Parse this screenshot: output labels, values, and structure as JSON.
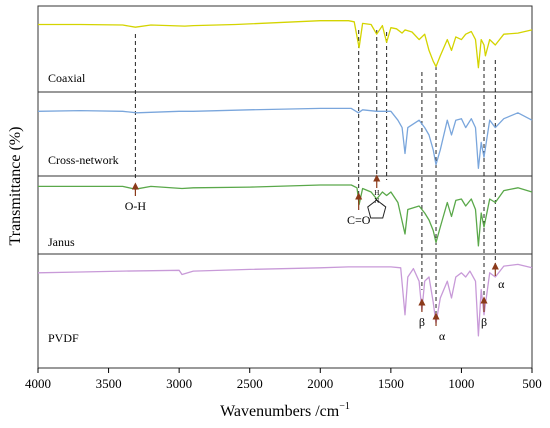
{
  "chart_data": {
    "type": "line",
    "xlabel": "Wavenumbers /cm",
    "xlabel_sup": "−1",
    "ylabel": "Transmittance (%)",
    "xlim": [
      4000,
      500
    ],
    "x_ticks": [
      4000,
      3500,
      3000,
      2500,
      2000,
      1500,
      1000,
      500
    ],
    "x_tick_labels": [
      "4000",
      "3500",
      "3000",
      "2500",
      "2000",
      "1500",
      "1000",
      "500"
    ],
    "grid": false,
    "stacked_panels": true,
    "series": [
      {
        "name": "Coaxial",
        "color": "#d4d400",
        "points": [
          [
            4000,
            0.88
          ],
          [
            3700,
            0.88
          ],
          [
            3400,
            0.87
          ],
          [
            3310,
            0.83
          ],
          [
            3200,
            0.87
          ],
          [
            2960,
            0.85
          ],
          [
            2900,
            0.86
          ],
          [
            2600,
            0.88
          ],
          [
            2000,
            0.95
          ],
          [
            1800,
            0.95
          ],
          [
            1760,
            0.93
          ],
          [
            1725,
            0.45
          ],
          [
            1700,
            0.9
          ],
          [
            1640,
            0.88
          ],
          [
            1600,
            0.7
          ],
          [
            1560,
            0.86
          ],
          [
            1530,
            0.55
          ],
          [
            1500,
            0.82
          ],
          [
            1460,
            0.8
          ],
          [
            1420,
            0.72
          ],
          [
            1400,
            0.78
          ],
          [
            1350,
            0.74
          ],
          [
            1300,
            0.6
          ],
          [
            1260,
            0.7
          ],
          [
            1230,
            0.4
          ],
          [
            1200,
            0.2
          ],
          [
            1180,
            0.1
          ],
          [
            1150,
            0.3
          ],
          [
            1100,
            0.6
          ],
          [
            1070,
            0.4
          ],
          [
            1040,
            0.65
          ],
          [
            1000,
            0.6
          ],
          [
            970,
            0.7
          ],
          [
            930,
            0.75
          ],
          [
            900,
            0.6
          ],
          [
            880,
            0.08
          ],
          [
            860,
            0.6
          ],
          [
            840,
            0.5
          ],
          [
            830,
            0.3
          ],
          [
            800,
            0.6
          ],
          [
            760,
            0.5
          ],
          [
            700,
            0.7
          ],
          [
            600,
            0.72
          ],
          [
            500,
            0.78
          ]
        ]
      },
      {
        "name": "Cross-network",
        "color": "#7aa6dc",
        "points": [
          [
            4000,
            0.82
          ],
          [
            3700,
            0.83
          ],
          [
            3400,
            0.82
          ],
          [
            3300,
            0.8
          ],
          [
            3000,
            0.82
          ],
          [
            2900,
            0.82
          ],
          [
            2500,
            0.84
          ],
          [
            2000,
            0.86
          ],
          [
            1780,
            0.86
          ],
          [
            1730,
            0.8
          ],
          [
            1700,
            0.84
          ],
          [
            1600,
            0.82
          ],
          [
            1500,
            0.82
          ],
          [
            1450,
            0.7
          ],
          [
            1420,
            0.6
          ],
          [
            1400,
            0.25
          ],
          [
            1380,
            0.6
          ],
          [
            1300,
            0.7
          ],
          [
            1260,
            0.6
          ],
          [
            1230,
            0.5
          ],
          [
            1200,
            0.3
          ],
          [
            1180,
            0.1
          ],
          [
            1150,
            0.3
          ],
          [
            1100,
            0.7
          ],
          [
            1070,
            0.5
          ],
          [
            1040,
            0.7
          ],
          [
            1000,
            0.72
          ],
          [
            970,
            0.6
          ],
          [
            930,
            0.72
          ],
          [
            900,
            0.6
          ],
          [
            880,
            0.05
          ],
          [
            860,
            0.4
          ],
          [
            840,
            0.2
          ],
          [
            800,
            0.7
          ],
          [
            760,
            0.6
          ],
          [
            700,
            0.72
          ],
          [
            600,
            0.8
          ],
          [
            500,
            0.7
          ]
        ]
      },
      {
        "name": "Janus",
        "color": "#5aa84a",
        "points": [
          [
            4000,
            0.88
          ],
          [
            3700,
            0.88
          ],
          [
            3400,
            0.88
          ],
          [
            3310,
            0.84
          ],
          [
            3200,
            0.88
          ],
          [
            2980,
            0.85
          ],
          [
            2900,
            0.86
          ],
          [
            2500,
            0.87
          ],
          [
            2000,
            0.9
          ],
          [
            1780,
            0.9
          ],
          [
            1740,
            0.86
          ],
          [
            1725,
            0.62
          ],
          [
            1700,
            0.85
          ],
          [
            1640,
            0.8
          ],
          [
            1600,
            0.7
          ],
          [
            1560,
            0.8
          ],
          [
            1530,
            0.75
          ],
          [
            1500,
            0.8
          ],
          [
            1450,
            0.65
          ],
          [
            1400,
            0.2
          ],
          [
            1380,
            0.55
          ],
          [
            1300,
            0.6
          ],
          [
            1260,
            0.5
          ],
          [
            1230,
            0.4
          ],
          [
            1200,
            0.25
          ],
          [
            1180,
            0.08
          ],
          [
            1150,
            0.3
          ],
          [
            1100,
            0.65
          ],
          [
            1070,
            0.45
          ],
          [
            1040,
            0.68
          ],
          [
            1000,
            0.7
          ],
          [
            970,
            0.6
          ],
          [
            930,
            0.7
          ],
          [
            900,
            0.55
          ],
          [
            880,
            0.03
          ],
          [
            860,
            0.5
          ],
          [
            840,
            0.3
          ],
          [
            800,
            0.7
          ],
          [
            760,
            0.65
          ],
          [
            700,
            0.82
          ],
          [
            600,
            0.86
          ],
          [
            500,
            0.8
          ]
        ]
      },
      {
        "name": "PVDF",
        "color": "#c89ad8",
        "points": [
          [
            4000,
            0.8
          ],
          [
            3700,
            0.81
          ],
          [
            3400,
            0.82
          ],
          [
            3000,
            0.83
          ],
          [
            2980,
            0.78
          ],
          [
            2900,
            0.82
          ],
          [
            2500,
            0.84
          ],
          [
            2000,
            0.86
          ],
          [
            1800,
            0.87
          ],
          [
            1500,
            0.87
          ],
          [
            1430,
            0.86
          ],
          [
            1400,
            0.3
          ],
          [
            1380,
            0.75
          ],
          [
            1340,
            0.85
          ],
          [
            1300,
            0.7
          ],
          [
            1280,
            0.35
          ],
          [
            1260,
            0.7
          ],
          [
            1230,
            0.75
          ],
          [
            1200,
            0.45
          ],
          [
            1180,
            0.2
          ],
          [
            1150,
            0.5
          ],
          [
            1100,
            0.7
          ],
          [
            1070,
            0.5
          ],
          [
            1040,
            0.75
          ],
          [
            1000,
            0.8
          ],
          [
            970,
            0.75
          ],
          [
            940,
            0.82
          ],
          [
            900,
            0.7
          ],
          [
            880,
            0.05
          ],
          [
            860,
            0.6
          ],
          [
            840,
            0.3
          ],
          [
            800,
            0.8
          ],
          [
            760,
            0.75
          ],
          [
            700,
            0.88
          ],
          [
            600,
            0.9
          ],
          [
            500,
            0.86
          ]
        ]
      }
    ],
    "reference_lines": [
      3310,
      1728,
      1600,
      1530,
      1280,
      1180,
      840,
      760
    ],
    "annotations": [
      {
        "text": "O-H",
        "x": 3310,
        "panel": "Janus"
      },
      {
        "text": "C=O",
        "x": 1728,
        "panel": "Janus"
      },
      {
        "text": "H",
        "x": 1600,
        "panel": "Janus"
      },
      {
        "text": "N",
        "x": 1600,
        "panel": "Janus"
      },
      {
        "text": "β",
        "x": 1280,
        "panel": "PVDF"
      },
      {
        "text": "α",
        "x": 1180,
        "panel": "PVDF"
      },
      {
        "text": "β",
        "x": 840,
        "panel": "PVDF"
      },
      {
        "text": "α",
        "x": 760,
        "panel": "PVDF"
      }
    ]
  }
}
